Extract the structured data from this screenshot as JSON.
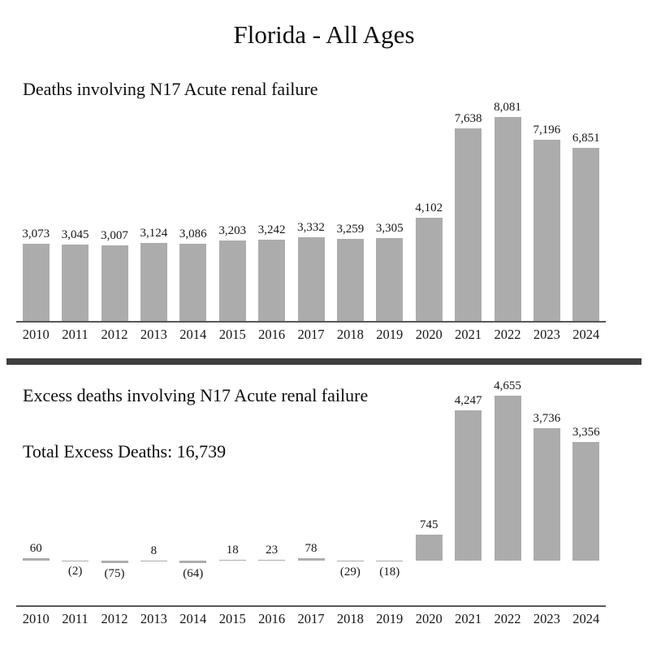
{
  "page": {
    "title": "Florida - All Ages"
  },
  "colors": {
    "background": "#ffffff",
    "bar_fill": "#acacac",
    "axis_line": "#58585a",
    "divider": "#3f3f3f",
    "text": "#111111"
  },
  "chart_data": [
    {
      "type": "bar",
      "title": "Deaths involving N17 Acute renal failure",
      "categories": [
        "2010",
        "2011",
        "2012",
        "2013",
        "2014",
        "2015",
        "2016",
        "2017",
        "2018",
        "2019",
        "2020",
        "2021",
        "2022",
        "2023",
        "2024"
      ],
      "values": [
        3073,
        3045,
        3007,
        3124,
        3086,
        3203,
        3242,
        3332,
        3259,
        3305,
        4102,
        7638,
        8081,
        7196,
        6851
      ],
      "labels": [
        "3,073",
        "3,045",
        "3,007",
        "3,124",
        "3,086",
        "3,203",
        "3,242",
        "3,332",
        "3,259",
        "3,305",
        "4,102",
        "7,638",
        "8,081",
        "7,196",
        "6,851"
      ],
      "xlabel": "",
      "ylabel": "",
      "ylim": [
        0,
        8500
      ],
      "grid": false,
      "legend": "none",
      "data_labels": "above-bars"
    },
    {
      "type": "bar",
      "title": "Excess deaths involving N17 Acute renal failure",
      "subtitle": "Total Excess Deaths: 16,739",
      "total_excess_deaths": 16739,
      "categories": [
        "2010",
        "2011",
        "2012",
        "2013",
        "2014",
        "2015",
        "2016",
        "2017",
        "2018",
        "2019",
        "2020",
        "2021",
        "2022",
        "2023",
        "2024"
      ],
      "values": [
        60,
        -2,
        -75,
        8,
        -64,
        18,
        23,
        78,
        -29,
        -18,
        745,
        4247,
        4655,
        3736,
        3356
      ],
      "labels": [
        "60",
        "(2)",
        "(75)",
        "8",
        "(64)",
        "18",
        "23",
        "78",
        "(29)",
        "(18)",
        "745",
        "4,247",
        "4,655",
        "3,736",
        "3,356"
      ],
      "xlabel": "",
      "ylabel": "",
      "ylim": [
        -100,
        4800
      ],
      "grid": false,
      "legend": "none",
      "data_labels": "above-positive-below-negative",
      "negative_format": "parentheses"
    }
  ]
}
